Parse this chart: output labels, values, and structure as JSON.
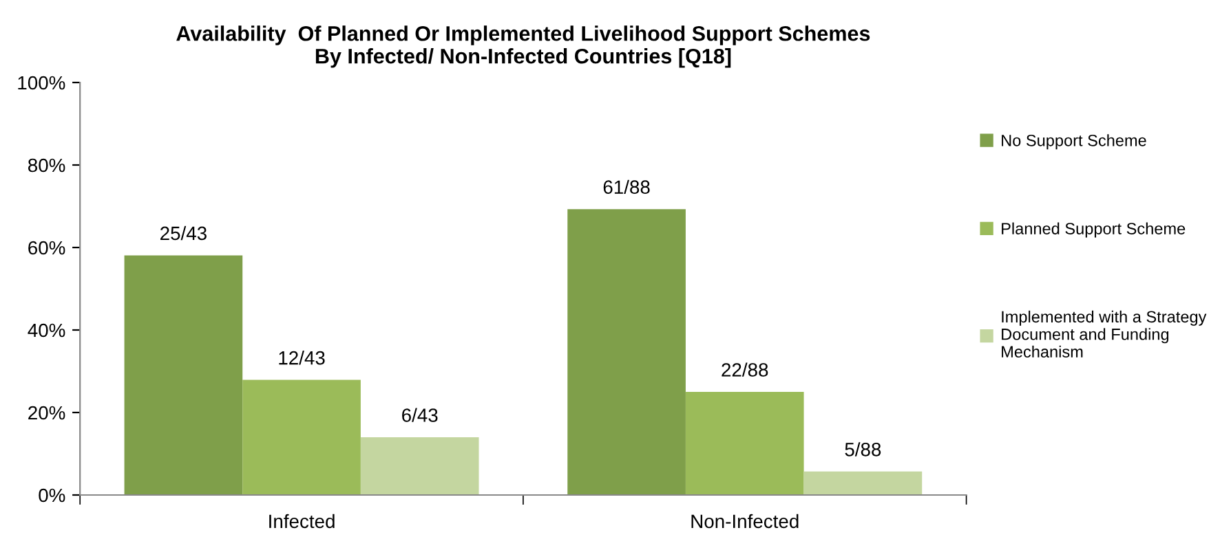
{
  "chart_data": {
    "type": "bar",
    "title": "Availability  Of Planned Or Implemented Livelihood Support Schemes\nBy Infected/ Non-Infected Countries [Q18]",
    "categories": [
      "Infected",
      "Non-Infected"
    ],
    "series": [
      {
        "name": "No Support Scheme",
        "color": "#7f9f4a",
        "values": [
          58.1,
          69.3
        ],
        "value_labels": [
          "25/43",
          "61/88"
        ]
      },
      {
        "name": "Planned Support Scheme",
        "color": "#9bbb59",
        "values": [
          27.9,
          25.0
        ],
        "value_labels": [
          "12/43",
          "22/88"
        ]
      },
      {
        "name": "Implemented with a Strategy\nDocument and Funding\nMechanism",
        "color": "#c4d6a0",
        "values": [
          14.0,
          5.7
        ],
        "value_labels": [
          "6/43",
          "5/88"
        ]
      }
    ],
    "ylim": [
      0,
      100
    ],
    "yticks": [
      {
        "value": 0,
        "label": "0%"
      },
      {
        "value": 20,
        "label": "20%"
      },
      {
        "value": 40,
        "label": "40%"
      },
      {
        "value": 60,
        "label": "60%"
      },
      {
        "value": 80,
        "label": "80%"
      },
      {
        "value": 100,
        "label": "100%"
      }
    ],
    "grid": false,
    "legend": "right"
  }
}
